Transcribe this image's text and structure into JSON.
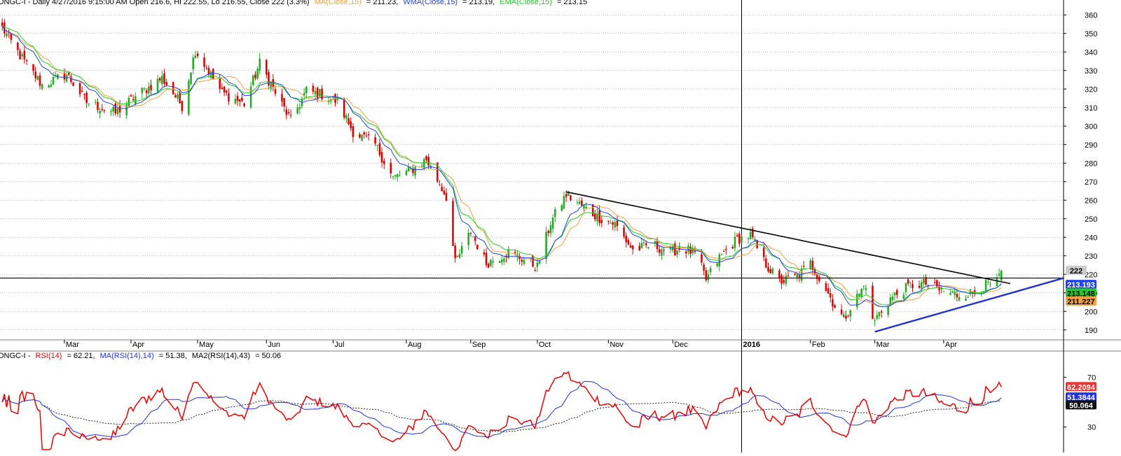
{
  "price_header": {
    "symbol": "ONGC-I - Daily 4/27/2016 9:15:00 AM Open 216.6, Hi 222.55, Lo 216.55, Close 222 (3.3%)",
    "ma": "MA(Close,15)",
    "ma_val": "= 211.23,",
    "wma": "WMA(Close,15)",
    "wma_val": "= 213.19,",
    "ema": "EMA(Close,15)",
    "ema_val": "= 213.15"
  },
  "rsi_header": {
    "symbol": "ONGC-I -",
    "rsi": "RSI(14)",
    "rsi_val": "= 62.21,",
    "ma_rsi": "MA(RSI(14),14)",
    "ma_rsi_val": "= 51.38,",
    "ma2_rsi": "MA2(RSI(14),43)",
    "ma2_rsi_val": "= 50.06"
  },
  "badges": {
    "last_close": "222",
    "wma": "213.193",
    "ema": "213.148",
    "ma": "211.227",
    "rsi": "62.2094",
    "ma_rsi": "51.3844",
    "ma2_rsi": "50.064"
  },
  "colors": {
    "up_candle": "#22aa22",
    "down_candle": "#dd0000",
    "ma": "#f5a040",
    "wma": "#2244ee",
    "ema": "#22cc22",
    "rsi": "#ee0000",
    "ma_rsi": "#2233dd",
    "ma2_rsi": "#222222",
    "trend_down": "#000000",
    "trend_up": "#2233cc",
    "support": "#000000",
    "grid": "#888888"
  },
  "chart_data": [
    {
      "type": "candlestick",
      "title": "ONGC-I - Daily",
      "y_ticks": [
        "190",
        "200",
        "210",
        "220",
        "230",
        "240",
        "250",
        "260",
        "270",
        "280",
        "290",
        "300",
        "310",
        "320",
        "330",
        "340",
        "350",
        "360"
      ],
      "ylim": [
        185,
        365
      ],
      "x_ticks": [
        "Mar",
        "Apr",
        "May",
        "Jun",
        "Jul",
        "Aug",
        "Sep",
        "Oct",
        "Nov",
        "Dec",
        "2016",
        "Feb",
        "Mar",
        "Apr"
      ],
      "x_tick_dates": [
        "2015-03-02",
        "2015-04-01",
        "2015-05-01",
        "2015-06-01",
        "2015-07-01",
        "2015-08-03",
        "2015-09-01",
        "2015-10-01",
        "2015-11-02",
        "2015-12-01",
        "2016-01-01",
        "2016-02-01",
        "2016-03-01",
        "2016-04-01"
      ],
      "x_range_dates": [
        "2015-02-01",
        "2016-05-25"
      ],
      "price_anchors": [
        [
          "2015-02-02",
          353
        ],
        [
          "2015-02-10",
          338
        ],
        [
          "2015-02-20",
          322
        ],
        [
          "2015-03-03",
          328
        ],
        [
          "2015-03-12",
          313
        ],
        [
          "2015-03-25",
          307
        ],
        [
          "2015-04-02",
          315
        ],
        [
          "2015-04-15",
          326
        ],
        [
          "2015-04-24",
          311
        ],
        [
          "2015-04-30",
          341
        ],
        [
          "2015-05-12",
          318
        ],
        [
          "2015-05-22",
          312
        ],
        [
          "2015-05-29",
          334
        ],
        [
          "2015-06-05",
          318
        ],
        [
          "2015-06-12",
          303
        ],
        [
          "2015-06-19",
          319
        ],
        [
          "2015-06-26",
          317
        ],
        [
          "2015-07-03",
          313
        ],
        [
          "2015-07-10",
          297
        ],
        [
          "2015-07-20",
          290
        ],
        [
          "2015-07-28",
          272
        ],
        [
          "2015-08-05",
          276
        ],
        [
          "2015-08-12",
          282
        ],
        [
          "2015-08-21",
          262
        ],
        [
          "2015-08-25",
          226
        ],
        [
          "2015-09-01",
          243
        ],
        [
          "2015-09-08",
          226
        ],
        [
          "2015-09-18",
          232
        ],
        [
          "2015-09-25",
          228
        ],
        [
          "2015-10-01",
          224
        ],
        [
          "2015-10-07",
          248
        ],
        [
          "2015-10-14",
          263
        ],
        [
          "2015-10-21",
          257
        ],
        [
          "2015-10-28",
          251
        ],
        [
          "2015-11-05",
          247
        ],
        [
          "2015-11-13",
          233
        ],
        [
          "2015-11-22",
          236
        ],
        [
          "2015-11-30",
          232
        ],
        [
          "2015-12-04",
          234
        ],
        [
          "2015-12-08",
          233
        ],
        [
          "2015-12-12",
          230
        ],
        [
          "2015-12-16",
          217
        ],
        [
          "2015-12-22",
          229
        ],
        [
          "2015-12-30",
          239
        ],
        [
          "2016-01-05",
          241
        ],
        [
          "2016-01-11",
          227
        ],
        [
          "2016-01-18",
          216
        ],
        [
          "2016-01-26",
          219
        ],
        [
          "2016-02-01",
          226
        ],
        [
          "2016-02-08",
          212
        ],
        [
          "2016-02-12",
          203
        ],
        [
          "2016-02-16",
          196
        ],
        [
          "2016-02-21",
          206
        ],
        [
          "2016-02-26",
          215
        ],
        [
          "2016-02-29",
          194
        ],
        [
          "2016-03-08",
          207
        ],
        [
          "2016-03-17",
          214
        ],
        [
          "2016-03-24",
          215
        ],
        [
          "2016-03-31",
          211
        ],
        [
          "2016-04-07",
          209
        ],
        [
          "2016-04-14",
          210
        ],
        [
          "2016-04-20",
          214
        ],
        [
          "2016-04-25",
          215
        ],
        [
          "2016-04-27",
          222
        ]
      ],
      "series": [
        {
          "name": "MA(Close,15)",
          "last": 211.227
        },
        {
          "name": "WMA(Close,15)",
          "last": 213.193
        },
        {
          "name": "EMA(Close,15)",
          "last": 213.148
        }
      ],
      "support_level": 218,
      "trendline_down": {
        "from": [
          "2015-10-14",
          264.5
        ],
        "to": [
          "2016-05-01",
          215
        ]
      },
      "trendline_up": {
        "from": [
          "2016-03-01",
          189
        ],
        "to": [
          "2016-05-25",
          218
        ]
      },
      "divider_date": "2016-01-01",
      "last_close": 222
    },
    {
      "type": "line",
      "title": "ONGC-I - RSI(14)",
      "y_ticks": [
        "30",
        "70"
      ],
      "ylim": [
        18,
        82
      ],
      "series": [
        {
          "name": "RSI(14)",
          "last": 62.2094
        },
        {
          "name": "MA(RSI(14),14)",
          "last": 51.3844
        },
        {
          "name": "MA2(RSI(14),43)",
          "last": 50.064
        }
      ]
    }
  ]
}
